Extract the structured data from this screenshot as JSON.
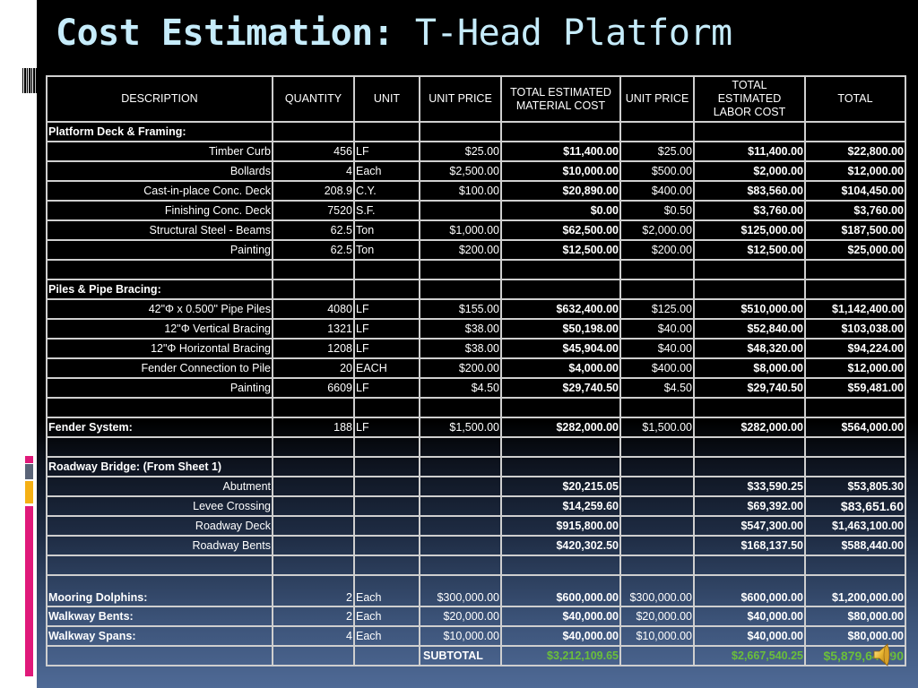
{
  "slide": {
    "title_bold": "Cost Estimation:",
    "title_light": " T-Head Platform",
    "colors": {
      "title": "#c6ecfb",
      "subtotal_green": "#6bbf3a",
      "accent_pink": "#e0197a",
      "accent_gray": "#5a6478",
      "accent_orange": "#f5b014",
      "background_bottom": "#4f6a96"
    }
  },
  "table": {
    "headers": {
      "description": "DESCRIPTION",
      "quantity": "QUANTITY",
      "unit": "UNIT",
      "unit_price": "UNIT PRICE",
      "material_cost": "TOTAL ESTIMATED MATERIAL COST",
      "labor_unit_price": "UNIT PRICE",
      "labor_cost": "TOTAL ESTIMATED LABOR COST",
      "total": "TOTAL"
    },
    "rows": [
      {
        "type": "section",
        "description": "Platform Deck & Framing:",
        "quantity": "",
        "unit": "",
        "unit_price": "",
        "material_cost": "",
        "labor_unit_price": "",
        "labor_cost": "",
        "total": ""
      },
      {
        "type": "item",
        "description": "Timber Curb",
        "quantity": "456",
        "unit": "LF",
        "unit_price": "$25.00",
        "material_cost": "$11,400.00",
        "labor_unit_price": "$25.00",
        "labor_cost": "$11,400.00",
        "total": "$22,800.00"
      },
      {
        "type": "item",
        "description": "Bollards",
        "quantity": "4",
        "unit": "Each",
        "unit_price": "$2,500.00",
        "material_cost": "$10,000.00",
        "labor_unit_price": "$500.00",
        "labor_cost": "$2,000.00",
        "total": "$12,000.00"
      },
      {
        "type": "item",
        "description": "Cast-in-place Conc. Deck",
        "quantity": "208.9",
        "unit": "C.Y.",
        "unit_price": "$100.00",
        "material_cost": "$20,890.00",
        "labor_unit_price": "$400.00",
        "labor_cost": "$83,560.00",
        "total": "$104,450.00"
      },
      {
        "type": "item",
        "description": "Finishing Conc. Deck",
        "quantity": "7520",
        "unit": "S.F.",
        "unit_price": "",
        "material_cost": "$0.00",
        "labor_unit_price": "$0.50",
        "labor_cost": "$3,760.00",
        "total": "$3,760.00"
      },
      {
        "type": "item",
        "description": "Structural Steel - Beams",
        "quantity": "62.5",
        "unit": "Ton",
        "unit_price": "$1,000.00",
        "material_cost": "$62,500.00",
        "labor_unit_price": "$2,000.00",
        "labor_cost": "$125,000.00",
        "total": "$187,500.00"
      },
      {
        "type": "item",
        "description": "Painting",
        "quantity": "62.5",
        "unit": "Ton",
        "unit_price": "$200.00",
        "material_cost": "$12,500.00",
        "labor_unit_price": "$200.00",
        "labor_cost": "$12,500.00",
        "total": "$25,000.00"
      },
      {
        "type": "blank",
        "description": "",
        "quantity": "",
        "unit": "",
        "unit_price": "",
        "material_cost": "",
        "labor_unit_price": "",
        "labor_cost": "",
        "total": ""
      },
      {
        "type": "section",
        "description": "Piles & Pipe Bracing:",
        "quantity": "",
        "unit": "",
        "unit_price": "",
        "material_cost": "",
        "labor_unit_price": "",
        "labor_cost": "",
        "total": ""
      },
      {
        "type": "item",
        "description": "42\"Φ x 0.500\" Pipe Piles",
        "quantity": "4080",
        "unit": "LF",
        "unit_price": "$155.00",
        "material_cost": "$632,400.00",
        "labor_unit_price": "$125.00",
        "labor_cost": "$510,000.00",
        "total": "$1,142,400.00"
      },
      {
        "type": "item",
        "description": "12\"Φ Vertical Bracing",
        "quantity": "1321",
        "unit": "LF",
        "unit_price": "$38.00",
        "material_cost": "$50,198.00",
        "labor_unit_price": "$40.00",
        "labor_cost": "$52,840.00",
        "total": "$103,038.00"
      },
      {
        "type": "item",
        "description": "12\"Φ Horizontal Bracing",
        "quantity": "1208",
        "unit": "LF",
        "unit_price": "$38.00",
        "material_cost": "$45,904.00",
        "labor_unit_price": "$40.00",
        "labor_cost": "$48,320.00",
        "total": "$94,224.00"
      },
      {
        "type": "item",
        "description": "Fender Connection to Pile",
        "quantity": "20",
        "unit": "EACH",
        "unit_price": "$200.00",
        "material_cost": "$4,000.00",
        "labor_unit_price": "$400.00",
        "labor_cost": "$8,000.00",
        "total": "$12,000.00"
      },
      {
        "type": "item",
        "description": "Painting",
        "quantity": "6609",
        "unit": "LF",
        "unit_price": "$4.50",
        "material_cost": "$29,740.50",
        "labor_unit_price": "$4.50",
        "labor_cost": "$29,740.50",
        "total": "$59,481.00"
      },
      {
        "type": "blank",
        "description": "",
        "quantity": "",
        "unit": "",
        "unit_price": "",
        "material_cost": "",
        "labor_unit_price": "",
        "labor_cost": "",
        "total": ""
      },
      {
        "type": "section-item",
        "description": "Fender System:",
        "quantity": "188",
        "unit": "LF",
        "unit_price": "$1,500.00",
        "material_cost": "$282,000.00",
        "labor_unit_price": "$1,500.00",
        "labor_cost": "$282,000.00",
        "total": "$564,000.00"
      },
      {
        "type": "blank",
        "description": "",
        "quantity": "",
        "unit": "",
        "unit_price": "",
        "material_cost": "",
        "labor_unit_price": "",
        "labor_cost": "",
        "total": ""
      },
      {
        "type": "section",
        "description": "Roadway Bridge: (From Sheet 1)",
        "quantity": "",
        "unit": "",
        "unit_price": "",
        "material_cost": "",
        "labor_unit_price": "",
        "labor_cost": "",
        "total": ""
      },
      {
        "type": "item",
        "description": "Abutment",
        "quantity": "",
        "unit": "",
        "unit_price": "",
        "material_cost": "$20,215.05",
        "labor_unit_price": "",
        "labor_cost": "$33,590.25",
        "total": "$53,805.30"
      },
      {
        "type": "item",
        "description": "Levee Crossing",
        "quantity": "",
        "unit": "",
        "unit_price": "",
        "material_cost": "$14,259.60",
        "labor_unit_price": "",
        "labor_cost": "$69,392.00",
        "total": "$83,651.60",
        "total_big": true
      },
      {
        "type": "item",
        "description": "Roadway Deck",
        "quantity": "",
        "unit": "",
        "unit_price": "",
        "material_cost": "$915,800.00",
        "labor_unit_price": "",
        "labor_cost": "$547,300.00",
        "total": "$1,463,100.00"
      },
      {
        "type": "item",
        "description": "Roadway Bents",
        "quantity": "",
        "unit": "",
        "unit_price": "",
        "material_cost": "$420,302.50",
        "labor_unit_price": "",
        "labor_cost": "$168,137.50",
        "total": "$588,440.00"
      },
      {
        "type": "blank",
        "description": "",
        "quantity": "",
        "unit": "",
        "unit_price": "",
        "material_cost": "",
        "labor_unit_price": "",
        "labor_cost": "",
        "total": ""
      },
      {
        "type": "section-item",
        "tall": true,
        "description": "Mooring Dolphins:",
        "quantity": "2",
        "unit": "Each",
        "unit_price": "$300,000.00",
        "material_cost": "$600,000.00",
        "labor_unit_price": "$300,000.00",
        "labor_cost": "$600,000.00",
        "total": "$1,200,000.00"
      },
      {
        "type": "section-item",
        "description": "Walkway Bents:",
        "quantity": "2",
        "unit": "Each",
        "unit_price": "$20,000.00",
        "material_cost": "$40,000.00",
        "labor_unit_price": "$20,000.00",
        "labor_cost": "$40,000.00",
        "total": "$80,000.00"
      },
      {
        "type": "section-item",
        "description": "Walkway Spans:",
        "quantity": "4",
        "unit": "Each",
        "unit_price": "$10,000.00",
        "material_cost": "$40,000.00",
        "labor_unit_price": "$10,000.00",
        "labor_cost": "$40,000.00",
        "total": "$80,000.00"
      }
    ],
    "subtotal": {
      "label": "SUBTOTAL",
      "material_cost": "$3,212,109.65",
      "labor_cost": "$2,667,540.25",
      "total": "$5,879,649.90"
    }
  },
  "icons": {
    "speaker": "audio-speaker-icon"
  }
}
